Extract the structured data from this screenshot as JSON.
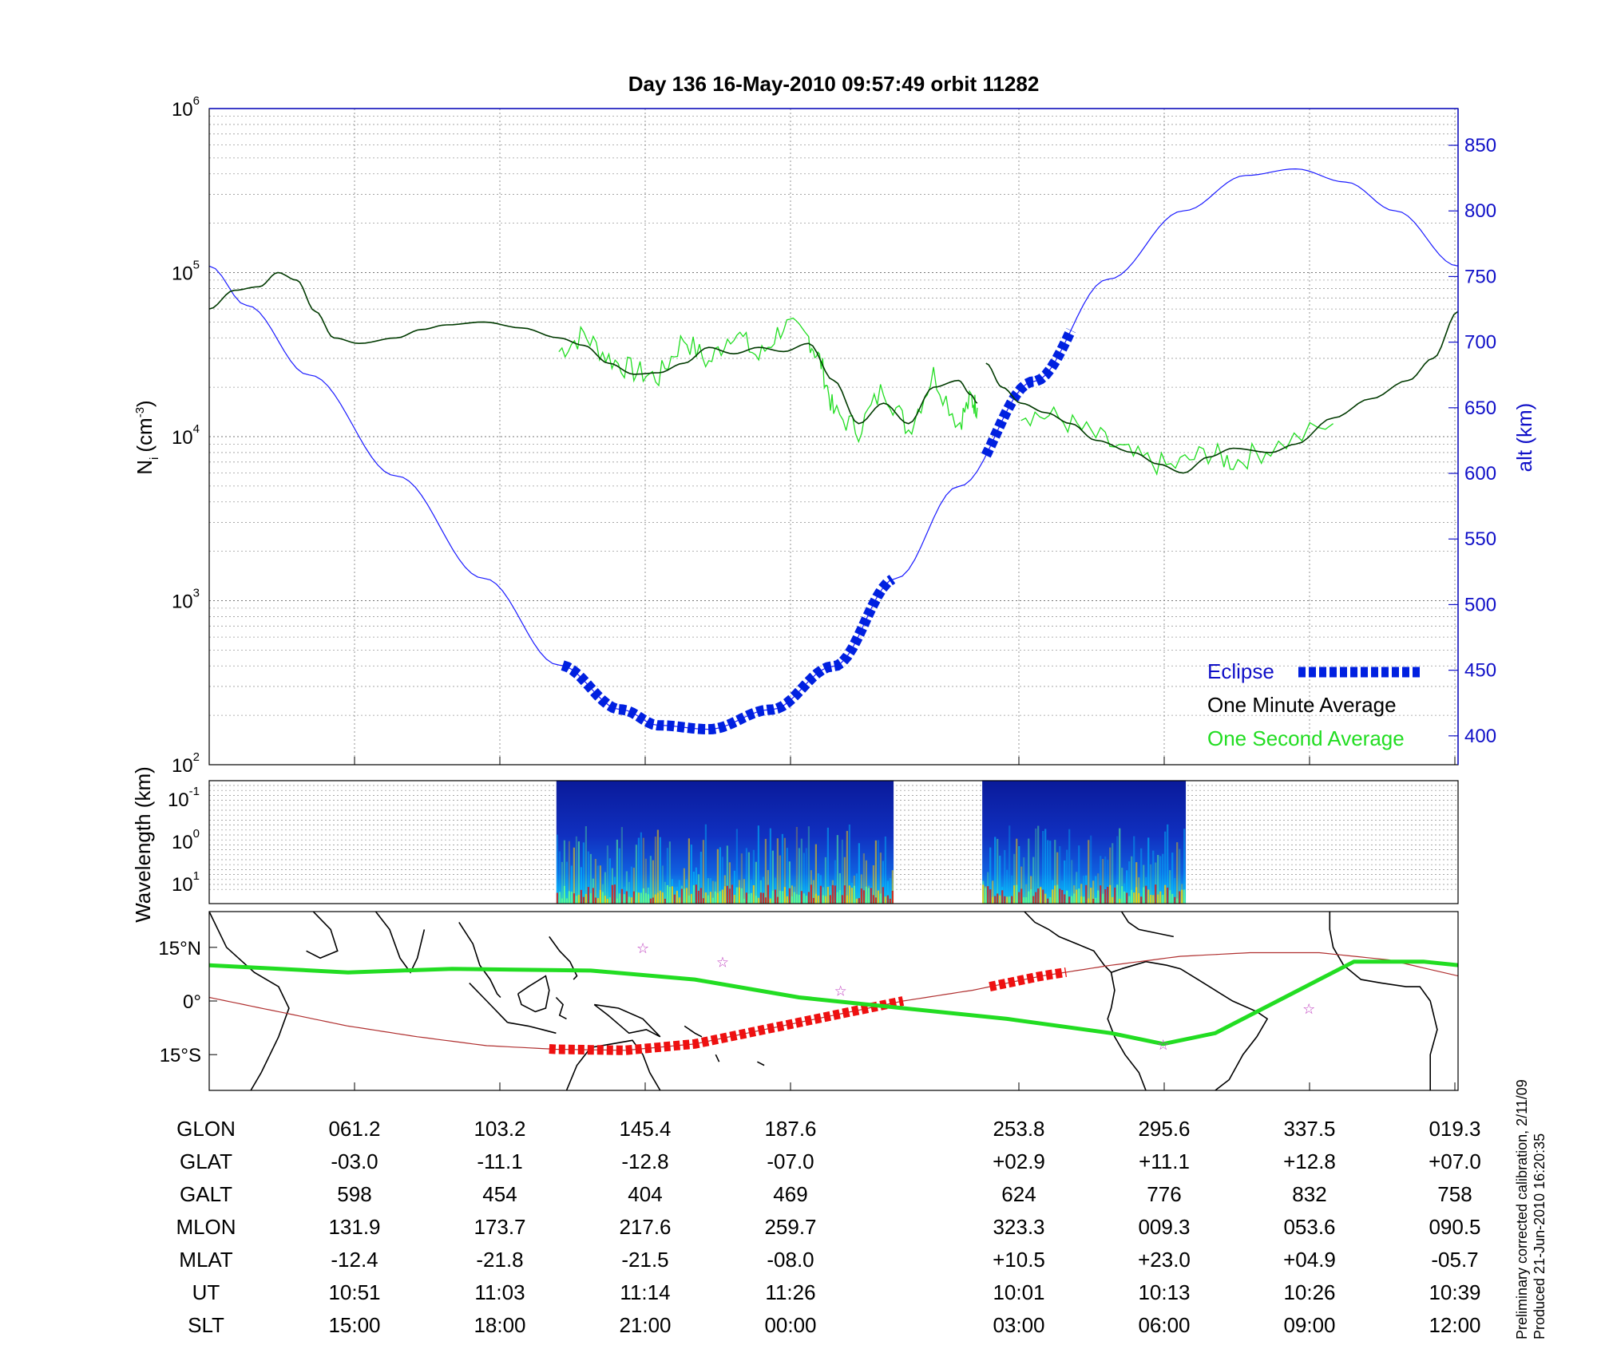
{
  "title": "Day 136  16-May-2010 09:57:49   orbit 11282",
  "footnote": [
    "Preliminary corrected calibration, 2/11/09",
    "Produced 21-Jun-2010 16:20:35"
  ],
  "colors": {
    "altitude": "#1a1aff",
    "eclipse": "#0020e0",
    "one_minute": "#003a00",
    "one_second": "#22dd22",
    "footprint": "#22dd22",
    "track": "#b03030",
    "track_eclipse": "#ee1010",
    "stars": "#c040c0"
  },
  "chart_data": [
    {
      "type": "line",
      "panel": "density",
      "ylabel_base": "N",
      "ylabel_sub": "i",
      "ylabel_unit": "(cm",
      "ylabel_unit_sup": "-3",
      "ylabel_close": ")",
      "y_scale": "log",
      "y_ticks": [
        {
          "base": "10",
          "exp": "2"
        },
        {
          "base": "10",
          "exp": "3"
        },
        {
          "base": "10",
          "exp": "4"
        },
        {
          "base": "10",
          "exp": "5"
        },
        {
          "base": "10",
          "exp": "6"
        }
      ],
      "ylim": [
        100,
        1000000
      ],
      "y2label": "alt (km)",
      "y2_ticks": [
        "400",
        "450",
        "500",
        "550",
        "600",
        "650",
        "700",
        "750",
        "800",
        "850"
      ],
      "y2lim": [
        378,
        878
      ],
      "grid": true,
      "legend_position": "bottom-right",
      "legend": {
        "eclipse": "Eclipse",
        "one_minute": "One Minute Average",
        "one_second": "One Second Average"
      },
      "x_note": "orbit progress, fraction 0-1 (time axis with data gap)",
      "altitude_km": [
        [
          0,
          758
        ],
        [
          0.03,
          728
        ],
        [
          0.08,
          675
        ],
        [
          0.15,
          598
        ],
        [
          0.22,
          520
        ],
        [
          0.28,
          454
        ],
        [
          0.33,
          420
        ],
        [
          0.36,
          408
        ],
        [
          0.4,
          405
        ],
        [
          0.45,
          420
        ],
        [
          0.5,
          453
        ],
        [
          0.55,
          520
        ],
        [
          0.6,
          590
        ],
        [
          0.66,
          670
        ],
        [
          0.72,
          748
        ],
        [
          0.78,
          800
        ],
        [
          0.83,
          827
        ],
        [
          0.87,
          832
        ],
        [
          0.91,
          822
        ],
        [
          0.95,
          800
        ],
        [
          1,
          758
        ]
      ],
      "eclipse_segments": [
        [
          0.283,
          0.55
        ],
        [
          0.622,
          0.693
        ]
      ],
      "one_minute_avg": [
        [
          [
            0,
            60000
          ],
          [
            0.02,
            78000
          ],
          [
            0.04,
            82000
          ],
          [
            0.055,
            100000
          ],
          [
            0.07,
            90000
          ],
          [
            0.085,
            58000
          ],
          [
            0.1,
            40000
          ],
          [
            0.12,
            37000
          ],
          [
            0.15,
            40000
          ],
          [
            0.17,
            45000
          ],
          [
            0.19,
            48000
          ],
          [
            0.22,
            50000
          ],
          [
            0.25,
            46000
          ],
          [
            0.28,
            40000
          ],
          [
            0.3,
            36000
          ],
          [
            0.32,
            28000
          ],
          [
            0.34,
            24000
          ],
          [
            0.36,
            24500
          ],
          [
            0.38,
            28000
          ],
          [
            0.4,
            35000
          ],
          [
            0.42,
            32000
          ],
          [
            0.44,
            35000
          ],
          [
            0.46,
            33000
          ],
          [
            0.48,
            37000
          ],
          [
            0.5,
            22000
          ],
          [
            0.52,
            12000
          ],
          [
            0.54,
            16000
          ],
          [
            0.56,
            12000
          ],
          [
            0.58,
            20000
          ],
          [
            0.6,
            22000
          ],
          [
            0.61,
            18000
          ],
          [
            0.615,
            16000
          ]
        ],
        [
          [
            0.622,
            28000
          ],
          [
            0.635,
            20000
          ],
          [
            0.65,
            16000
          ],
          [
            0.67,
            14000
          ],
          [
            0.69,
            12000
          ],
          [
            0.71,
            9500
          ],
          [
            0.74,
            8000
          ],
          [
            0.76,
            6800
          ],
          [
            0.78,
            6000
          ],
          [
            0.8,
            7500
          ],
          [
            0.82,
            8500
          ],
          [
            0.85,
            8000
          ],
          [
            0.87,
            9000
          ],
          [
            0.9,
            13000
          ],
          [
            0.93,
            17000
          ],
          [
            0.96,
            22000
          ],
          [
            0.98,
            30000
          ],
          [
            1,
            58000
          ]
        ]
      ],
      "one_second_avg": [
        [
          [
            0.28,
            33000
          ],
          [
            0.3,
            42000
          ],
          [
            0.32,
            30000
          ],
          [
            0.34,
            25000
          ],
          [
            0.36,
            23000
          ],
          [
            0.38,
            40000
          ],
          [
            0.4,
            28000
          ],
          [
            0.42,
            45000
          ],
          [
            0.44,
            30000
          ],
          [
            0.46,
            48000
          ],
          [
            0.48,
            40000
          ],
          [
            0.49,
            28000
          ],
          [
            0.5,
            14000
          ],
          [
            0.52,
            11000
          ],
          [
            0.54,
            20000
          ],
          [
            0.56,
            11000
          ],
          [
            0.58,
            24000
          ],
          [
            0.6,
            12000
          ],
          [
            0.61,
            17000
          ],
          [
            0.615,
            15000
          ]
        ],
        [
          [
            0.65,
            14000
          ],
          [
            0.68,
            13000
          ],
          [
            0.71,
            10000
          ],
          [
            0.74,
            7500
          ],
          [
            0.77,
            6500
          ],
          [
            0.8,
            8000
          ],
          [
            0.82,
            7000
          ],
          [
            0.85,
            8500
          ],
          [
            0.9,
            12000
          ]
        ]
      ]
    },
    {
      "type": "heatmap",
      "panel": "spectrogram",
      "ylabel": "Wavelength (km)",
      "y_ticks": [
        {
          "base": "10",
          "exp": "-1"
        },
        {
          "base": "10",
          "exp": "0"
        },
        {
          "base": "10",
          "exp": "1"
        }
      ],
      "segments": [
        [
          0.278,
          0.548
        ],
        [
          0.619,
          0.782
        ]
      ],
      "colormap": [
        "#000a80",
        "#0030ff",
        "#00c8ff",
        "#60ff90",
        "#ffd000",
        "#e01010"
      ],
      "grid": true
    },
    {
      "type": "map",
      "panel": "ground-track",
      "lat_ticks": [
        "15°N",
        "0°",
        "15°S"
      ],
      "lat_tick_values": [
        15,
        0,
        -15
      ],
      "lat_range": [
        -25,
        25
      ],
      "lon_range": [
        20,
        380
      ],
      "satellite_track": [
        [
          20,
          1
        ],
        [
          40,
          -3
        ],
        [
          60,
          -7
        ],
        [
          80,
          -10
        ],
        [
          100,
          -12.5
        ],
        [
          120,
          -13.5
        ],
        [
          140,
          -13.8
        ],
        [
          160,
          -12
        ],
        [
          180,
          -8
        ],
        [
          200,
          -4
        ],
        [
          220,
          0
        ],
        [
          240,
          3
        ],
        [
          260,
          7
        ],
        [
          280,
          10
        ],
        [
          300,
          12.5
        ],
        [
          320,
          13.5
        ],
        [
          340,
          13.5
        ],
        [
          360,
          11.5
        ],
        [
          380,
          7
        ]
      ],
      "eclipse_track_segments": [
        [
          118,
          220
        ],
        [
          245,
          268
        ]
      ],
      "magnetic_footprint": [
        [
          20,
          10
        ],
        [
          60,
          8
        ],
        [
          90,
          9
        ],
        [
          130,
          8.5
        ],
        [
          160,
          6
        ],
        [
          190,
          1
        ],
        [
          220,
          -2
        ],
        [
          250,
          -5
        ],
        [
          280,
          -9
        ],
        [
          295,
          -12
        ],
        [
          310,
          -9
        ],
        [
          330,
          1
        ],
        [
          350,
          11
        ],
        [
          370,
          11
        ],
        [
          380,
          10
        ]
      ],
      "stars": [
        [
          145,
          15
        ],
        [
          168,
          11
        ],
        [
          202,
          3
        ],
        [
          337,
          -2
        ],
        [
          295,
          -12
        ]
      ]
    }
  ],
  "table": {
    "labels": [
      "GLON",
      "GLAT",
      "GALT",
      "MLON",
      "MLAT",
      "UT",
      "SLT"
    ],
    "columns": [
      [
        "061.2",
        "-03.0",
        "598",
        "131.9",
        "-12.4",
        "10:51",
        "15:00"
      ],
      [
        "103.2",
        "-11.1",
        "454",
        "173.7",
        "-21.8",
        "11:03",
        "18:00"
      ],
      [
        "145.4",
        "-12.8",
        "404",
        "217.6",
        "-21.5",
        "11:14",
        "21:00"
      ],
      [
        "187.6",
        "-07.0",
        "469",
        "259.7",
        "-08.0",
        "11:26",
        "00:00"
      ],
      [
        "253.8",
        "+02.9",
        "624",
        "323.3",
        "+10.5",
        "10:01",
        "03:00"
      ],
      [
        "295.6",
        "+11.1",
        "776",
        "009.3",
        "+23.0",
        "10:13",
        "06:00"
      ],
      [
        "337.5",
        "+12.8",
        "832",
        "053.6",
        "+04.9",
        "10:26",
        "09:00"
      ],
      [
        "019.3",
        "+07.0",
        "758",
        "090.5",
        "-05.7",
        "10:39",
        "12:00"
      ]
    ]
  }
}
